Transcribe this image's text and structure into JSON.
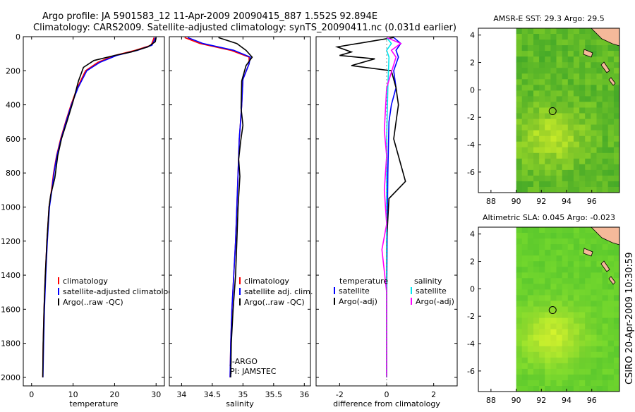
{
  "figure": {
    "title_line1": "Argo profile: JA 5901583_12 11-Apr-2009 20090415_887 1.552S 92.894E",
    "title_line2": "Climatology: CARS2009. Satellite-adjusted climatology: synTS_20090411.nc (0.031d earlier)",
    "timestamp": "CSIRO 20-Apr-2009 10:30:59"
  },
  "colors": {
    "climatology": "#ff0000",
    "satellite": "#0000ff",
    "argo": "#000000",
    "salinity_satellite": "#00e5ee",
    "salinity_argo": "#ff00ff",
    "land": "#f5b99a"
  },
  "chart_data": [
    {
      "type": "line",
      "name": "temperature",
      "xlabel": "temperature",
      "ylabel": "",
      "xlim": [
        -2,
        32
      ],
      "ylim": [
        2050,
        0
      ],
      "xticks": [
        "0",
        "10",
        "20",
        "30"
      ],
      "xtick_values": [
        0,
        10,
        20,
        30
      ],
      "yticks": [
        "0",
        "200",
        "400",
        "600",
        "800",
        "1000",
        "1200",
        "1400",
        "1600",
        "1800",
        "2000"
      ],
      "ytick_values": [
        0,
        200,
        400,
        600,
        800,
        1000,
        1200,
        1400,
        1600,
        1800,
        2000
      ],
      "legend": [
        "climatology",
        "satellite-adjusted climatology",
        "Argo(..raw -QC)"
      ],
      "series": [
        {
          "name": "climatology",
          "x": [
            29.5,
            29.3,
            28.8,
            25,
            20,
            16,
            13,
            11,
            9.5,
            8.2,
            7,
            6,
            5.3,
            4.8,
            4.2,
            3.7,
            3.3,
            3,
            2.8,
            2.7
          ],
          "y": [
            5,
            20,
            50,
            80,
            110,
            150,
            200,
            300,
            400,
            500,
            600,
            700,
            800,
            900,
            1000,
            1200,
            1400,
            1600,
            1800,
            2000
          ]
        },
        {
          "name": "satellite-adjusted climatology",
          "x": [
            29.8,
            29.6,
            29,
            25.5,
            20.5,
            16.5,
            13.3,
            11.2,
            9.6,
            8.3,
            7.1,
            6.1,
            5.4,
            4.9,
            4.3,
            3.8,
            3.4,
            3.1,
            2.9,
            2.75
          ],
          "y": [
            5,
            20,
            50,
            80,
            110,
            150,
            200,
            300,
            400,
            500,
            600,
            700,
            800,
            900,
            1000,
            1200,
            1400,
            1600,
            1800,
            2000
          ]
        },
        {
          "name": "Argo(..raw -QC)",
          "x": [
            30,
            29.8,
            28,
            24,
            20,
            15,
            12.5,
            11.3,
            10,
            8.5,
            7.2,
            6.3,
            5.6,
            4.6,
            4.2,
            3.7,
            3.3,
            3,
            2.8,
            2.7
          ],
          "y": [
            5,
            30,
            60,
            90,
            110,
            140,
            180,
            260,
            380,
            500,
            600,
            700,
            830,
            930,
            1000,
            1200,
            1400,
            1600,
            1800,
            2000
          ]
        }
      ]
    },
    {
      "type": "line",
      "name": "salinity",
      "xlabel": "salinity",
      "xlim": [
        33.8,
        36.1
      ],
      "ylim": [
        2050,
        0
      ],
      "xticks": [
        "34",
        "34.5",
        "35",
        "35.5",
        "36"
      ],
      "xtick_values": [
        34,
        34.5,
        35,
        35.5,
        36
      ],
      "legend": [
        "climatology",
        "satellite adj. clim.",
        "Argo(..raw -QC)"
      ],
      "annotation": [
        "J-ARGO",
        "PI: JAMSTEC"
      ],
      "series": [
        {
          "name": "climatology",
          "x": [
            34.05,
            34.3,
            34.8,
            35.1,
            35.1,
            35.0,
            34.98,
            34.96,
            34.94,
            34.93,
            34.92,
            34.9,
            34.88,
            34.85,
            34.82,
            34.8,
            34.79
          ],
          "y": [
            5,
            40,
            80,
            120,
            160,
            250,
            400,
            500,
            600,
            700,
            800,
            1000,
            1200,
            1400,
            1600,
            1800,
            2000
          ]
        },
        {
          "name": "satellite adj. clim.",
          "x": [
            34.1,
            34.35,
            34.85,
            35.12,
            35.1,
            35.0,
            34.98,
            34.96,
            34.94,
            34.93,
            34.92,
            34.9,
            34.88,
            34.85,
            34.82,
            34.8,
            34.79
          ],
          "y": [
            5,
            40,
            80,
            120,
            160,
            250,
            400,
            500,
            600,
            700,
            800,
            1000,
            1200,
            1400,
            1600,
            1800,
            2000
          ]
        },
        {
          "name": "Argo(..raw -QC)",
          "x": [
            34.6,
            34.9,
            35.05,
            35.15,
            35.05,
            34.98,
            34.97,
            35.0,
            34.96,
            34.93,
            34.95,
            34.92,
            34.9,
            34.88,
            34.84,
            34.81,
            34.8
          ],
          "y": [
            5,
            40,
            80,
            120,
            170,
            260,
            420,
            520,
            620,
            720,
            820,
            1000,
            1200,
            1400,
            1600,
            1800,
            2000
          ]
        }
      ]
    },
    {
      "type": "line",
      "name": "difference",
      "xlabel": "difference from climatology",
      "xlim": [
        -3,
        3
      ],
      "ylim": [
        2050,
        0
      ],
      "xticks": [
        "-2",
        "0",
        "2"
      ],
      "xtick_values": [
        -2,
        0,
        2
      ],
      "legend_headers": [
        "temperature",
        "salinity"
      ],
      "legend": [
        "satellite",
        "Argo(-adj)",
        "satellite",
        "Argo(-adj)"
      ],
      "series": [
        {
          "name": "temperature satellite",
          "x": [
            0.3,
            0.6,
            0.4,
            0.5,
            0.3,
            0.4,
            0.2,
            0.1,
            0.05,
            0.02,
            0.0,
            0.0
          ],
          "y": [
            5,
            40,
            80,
            120,
            200,
            300,
            400,
            500,
            800,
            1200,
            1600,
            2000
          ]
        },
        {
          "name": "temperature Argo(-adj)",
          "x": [
            0.3,
            -2.1,
            -1.5,
            -2,
            -0.5,
            -1.5,
            0.2,
            0.4,
            0.5,
            0.4,
            0.3,
            0.5,
            0.8,
            0.1,
            0.0,
            0.0,
            0.0
          ],
          "y": [
            5,
            60,
            90,
            110,
            130,
            170,
            200,
            300,
            400,
            500,
            600,
            700,
            850,
            950,
            1200,
            1600,
            2000
          ]
        },
        {
          "name": "salinity satellite",
          "x": [
            0.0,
            0.2,
            0.0,
            0.1,
            0.05,
            0.0,
            0.0,
            0.0,
            0.0
          ],
          "y": [
            5,
            40,
            80,
            120,
            300,
            600,
            1000,
            1500,
            2000
          ]
        },
        {
          "name": "salinity Argo(-adj)",
          "x": [
            0.0,
            0.6,
            0.2,
            0.4,
            0.0,
            -0.1,
            0.0,
            -0.1,
            0.0,
            -0.2,
            0.0,
            0.0
          ],
          "y": [
            5,
            40,
            80,
            120,
            300,
            550,
            700,
            900,
            1100,
            1250,
            1500,
            2000
          ]
        }
      ]
    },
    {
      "type": "heatmap",
      "name": "sst-map",
      "title": "AMSR-E SST: 29.3 Argo: 29.5",
      "xlim": [
        87,
        98.2
      ],
      "ylim": [
        -7.5,
        4.5
      ],
      "xticks": [
        "88",
        "90",
        "92",
        "94",
        "96"
      ],
      "xtick_values": [
        88,
        90,
        92,
        94,
        96
      ],
      "yticks": [
        "4",
        "2",
        "0",
        "-2",
        "-4",
        "-6"
      ],
      "ytick_values": [
        4,
        2,
        0,
        -2,
        -4,
        -6
      ],
      "marker": {
        "lon": 92.894,
        "lat": -1.552
      }
    },
    {
      "type": "heatmap",
      "name": "sla-map",
      "title": "Altimetric SLA: 0.045 Argo: -0.023",
      "xlim": [
        87,
        98.2
      ],
      "ylim": [
        -7.5,
        4.5
      ],
      "xticks": [
        "88",
        "90",
        "92",
        "94",
        "96"
      ],
      "xtick_values": [
        88,
        90,
        92,
        94,
        96
      ],
      "yticks": [
        "4",
        "2",
        "0",
        "-2",
        "-4",
        "-6"
      ],
      "ytick_values": [
        4,
        2,
        0,
        -2,
        -4,
        -6
      ],
      "marker": {
        "lon": 92.894,
        "lat": -1.552
      }
    }
  ]
}
